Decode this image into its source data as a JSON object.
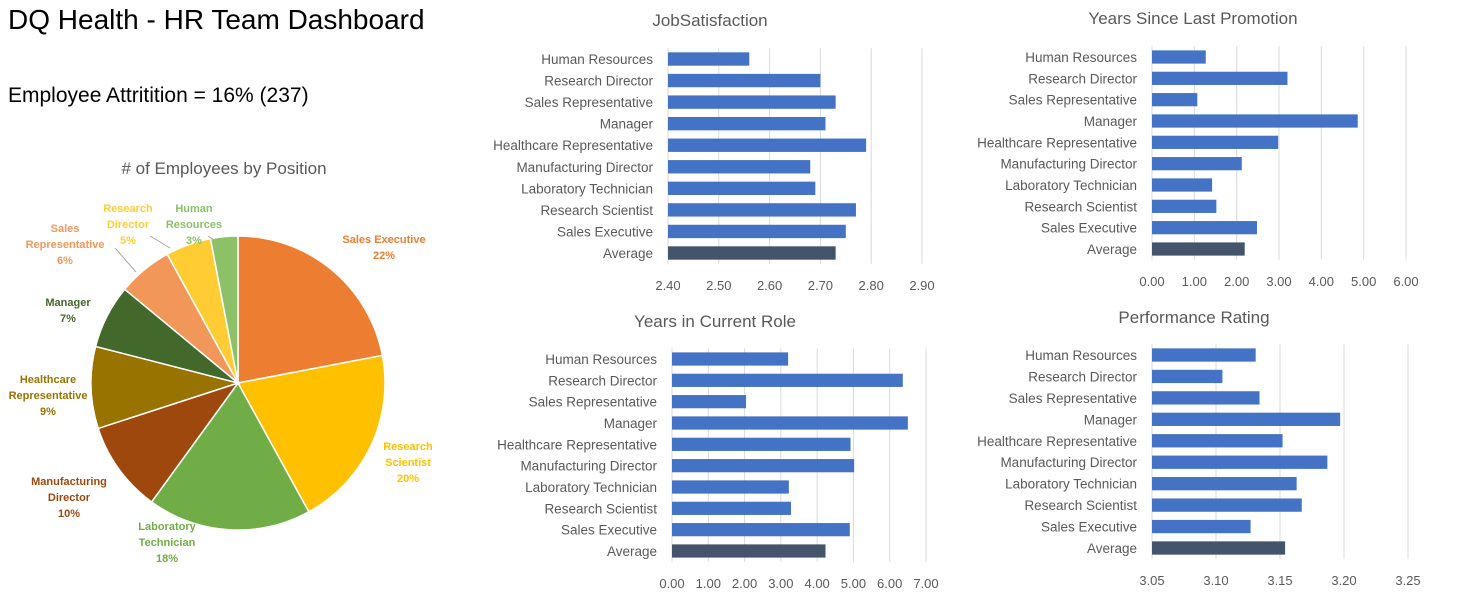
{
  "header": {
    "title": "DQ Health - HR Team Dashboard",
    "attrition": "Employee Attritition = 16% (237)"
  },
  "colors": {
    "bar": "#4472C4",
    "average_bar": "#44546A",
    "grid": "#D9D9D9",
    "text": "#595959"
  },
  "chart_data": [
    {
      "type": "pie",
      "title": "# of Employees by Position",
      "slices": [
        {
          "label": "Sales Executive",
          "pct_label": "22%",
          "value": 22,
          "color": "#ED7D31"
        },
        {
          "label": "Research Scientist",
          "pct_label": "20%",
          "value": 20,
          "color": "#FFC000"
        },
        {
          "label": "Laboratory Technician",
          "pct_label": "18%",
          "value": 18,
          "color": "#70AD47"
        },
        {
          "label": "Manufacturing Director",
          "pct_label": "10%",
          "value": 10,
          "color": "#9E480E"
        },
        {
          "label": "Healthcare Representative",
          "pct_label": "9%",
          "value": 9,
          "color": "#997300"
        },
        {
          "label": "Manager",
          "pct_label": "7%",
          "value": 7,
          "color": "#43682B"
        },
        {
          "label": "Sales Representative",
          "pct_label": "6%",
          "value": 6,
          "color": "#F1975A"
        },
        {
          "label": "Research Director",
          "pct_label": "5%",
          "value": 5,
          "color": "#FFCD33"
        },
        {
          "label": "Human Resources",
          "pct_label": "3%",
          "value": 3,
          "color": "#8CC168"
        }
      ]
    },
    {
      "type": "bar",
      "title": "JobSatisfaction",
      "categories": [
        "Human Resources",
        "Research Director",
        "Sales Representative",
        "Manager",
        "Healthcare Representative",
        "Manufacturing Director",
        "Laboratory Technician",
        "Research Scientist",
        "Sales Executive",
        "Average"
      ],
      "values": [
        2.56,
        2.7,
        2.73,
        2.71,
        2.79,
        2.68,
        2.69,
        2.77,
        2.75,
        2.73
      ],
      "xlim": [
        2.4,
        2.9
      ],
      "ticks": [
        "2.40",
        "2.50",
        "2.60",
        "2.70",
        "2.80",
        "2.90"
      ],
      "grid": true
    },
    {
      "type": "bar",
      "title": "Years Since Last Promotion",
      "categories": [
        "Human Resources",
        "Research Director",
        "Sales Representative",
        "Manager",
        "Healthcare Representative",
        "Manufacturing Director",
        "Laboratory Technician",
        "Research Scientist",
        "Sales Executive",
        "Average"
      ],
      "values": [
        1.27,
        3.2,
        1.07,
        4.86,
        2.98,
        2.12,
        1.42,
        1.52,
        2.48,
        2.19
      ],
      "xlim": [
        0,
        6
      ],
      "ticks": [
        "0.00",
        "1.00",
        "2.00",
        "3.00",
        "4.00",
        "5.00",
        "6.00"
      ],
      "grid": true
    },
    {
      "type": "bar",
      "title": "Years in Current Role",
      "categories": [
        "Human Resources",
        "Research Director",
        "Sales Representative",
        "Manager",
        "Healthcare Representative",
        "Manufacturing Director",
        "Laboratory Technician",
        "Research Scientist",
        "Sales Executive",
        "Average"
      ],
      "values": [
        3.2,
        6.36,
        2.04,
        6.5,
        4.92,
        5.02,
        3.22,
        3.28,
        4.9,
        4.23
      ],
      "xlim": [
        0,
        7
      ],
      "ticks": [
        "0.00",
        "1.00",
        "2.00",
        "3.00",
        "4.00",
        "5.00",
        "6.00",
        "7.00"
      ],
      "grid": true
    },
    {
      "type": "bar",
      "title": "Performance Rating",
      "categories": [
        "Human Resources",
        "Research Director",
        "Sales Representative",
        "Manager",
        "Healthcare Representative",
        "Manufacturing Director",
        "Laboratory Technician",
        "Research Scientist",
        "Sales Executive",
        "Average"
      ],
      "values": [
        3.131,
        3.105,
        3.134,
        3.197,
        3.152,
        3.187,
        3.163,
        3.167,
        3.127,
        3.154
      ],
      "xlim": [
        3.05,
        3.25
      ],
      "ticks": [
        "3.05",
        "3.10",
        "3.15",
        "3.20",
        "3.25"
      ],
      "grid": true
    }
  ]
}
